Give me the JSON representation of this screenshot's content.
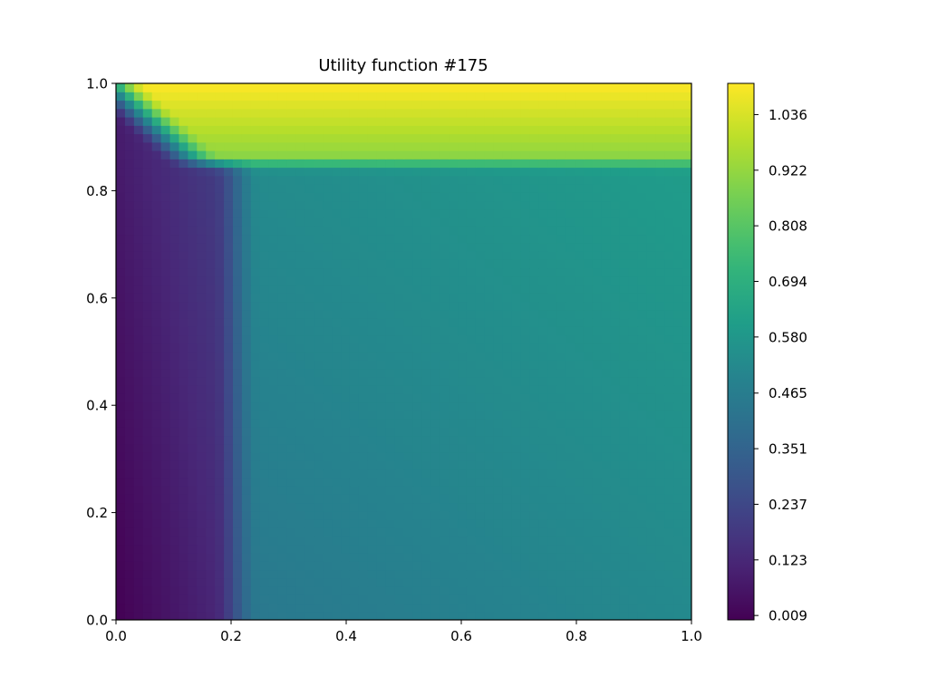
{
  "chart_data": {
    "type": "heatmap",
    "title": "Utility function #175",
    "xlabel": "",
    "ylabel": "",
    "xlim": [
      0.0,
      1.0
    ],
    "ylim": [
      0.0,
      1.0
    ],
    "x_ticks": [
      "0.0",
      "0.2",
      "0.4",
      "0.6",
      "0.8",
      "1.0"
    ],
    "y_ticks": [
      "0.0",
      "0.2",
      "0.4",
      "0.6",
      "0.8",
      "1.0"
    ],
    "colorbar": {
      "range": [
        0.0,
        1.1
      ],
      "ticks": [
        "0.009",
        "0.123",
        "0.237",
        "0.351",
        "0.465",
        "0.580",
        "0.694",
        "0.808",
        "0.922",
        "1.036"
      ],
      "tick_values": [
        0.009,
        0.123,
        0.237,
        0.351,
        0.465,
        0.58,
        0.694,
        0.808,
        0.922,
        1.036
      ]
    },
    "colormap": "viridis",
    "grid": false,
    "regions": {
      "x_threshold": 0.21,
      "y_threshold": 0.85,
      "low_region_value_range": [
        0.0,
        0.2
      ],
      "main_region_value_range": [
        0.42,
        0.6
      ],
      "top_band_value_range": [
        0.8,
        1.1
      ]
    }
  }
}
